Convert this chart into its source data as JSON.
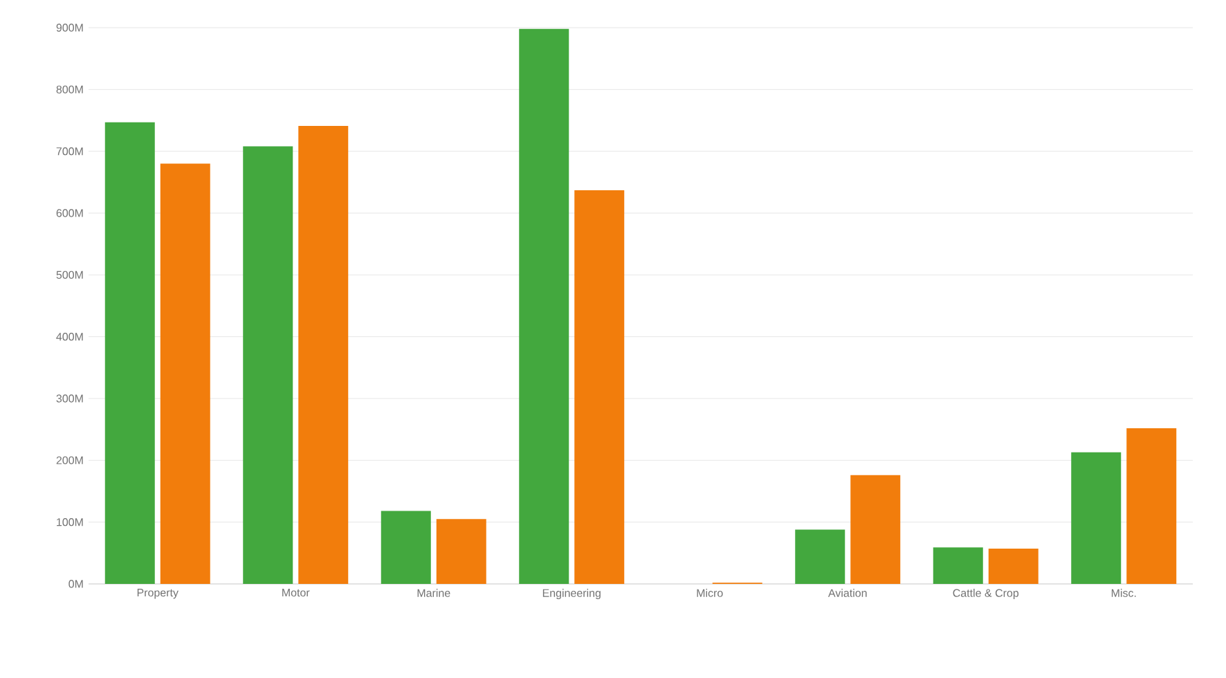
{
  "chart_data": {
    "type": "bar",
    "categories": [
      "Property",
      "Motor",
      "Marine",
      "Engineering",
      "Micro",
      "Aviation",
      "Cattle & Crop",
      "Misc."
    ],
    "series": [
      {
        "color": "#43a83e",
        "values": [
          747,
          708,
          118,
          898,
          0,
          88,
          59,
          213
        ]
      },
      {
        "color": "#f27d0c",
        "values": [
          680,
          741,
          105,
          637,
          2,
          176,
          57,
          252
        ]
      }
    ],
    "ylim": [
      0,
      900
    ],
    "yticks": [
      {
        "value": 0,
        "label": "0M"
      },
      {
        "value": 100,
        "label": "100M"
      },
      {
        "value": 200,
        "label": "200M"
      },
      {
        "value": 300,
        "label": "300M"
      },
      {
        "value": 400,
        "label": "400M"
      },
      {
        "value": 500,
        "label": "500M"
      },
      {
        "value": 600,
        "label": "600M"
      },
      {
        "value": 700,
        "label": "700M"
      },
      {
        "value": 800,
        "label": "800M"
      },
      {
        "value": 900,
        "label": "900M"
      }
    ],
    "grid": "y"
  }
}
